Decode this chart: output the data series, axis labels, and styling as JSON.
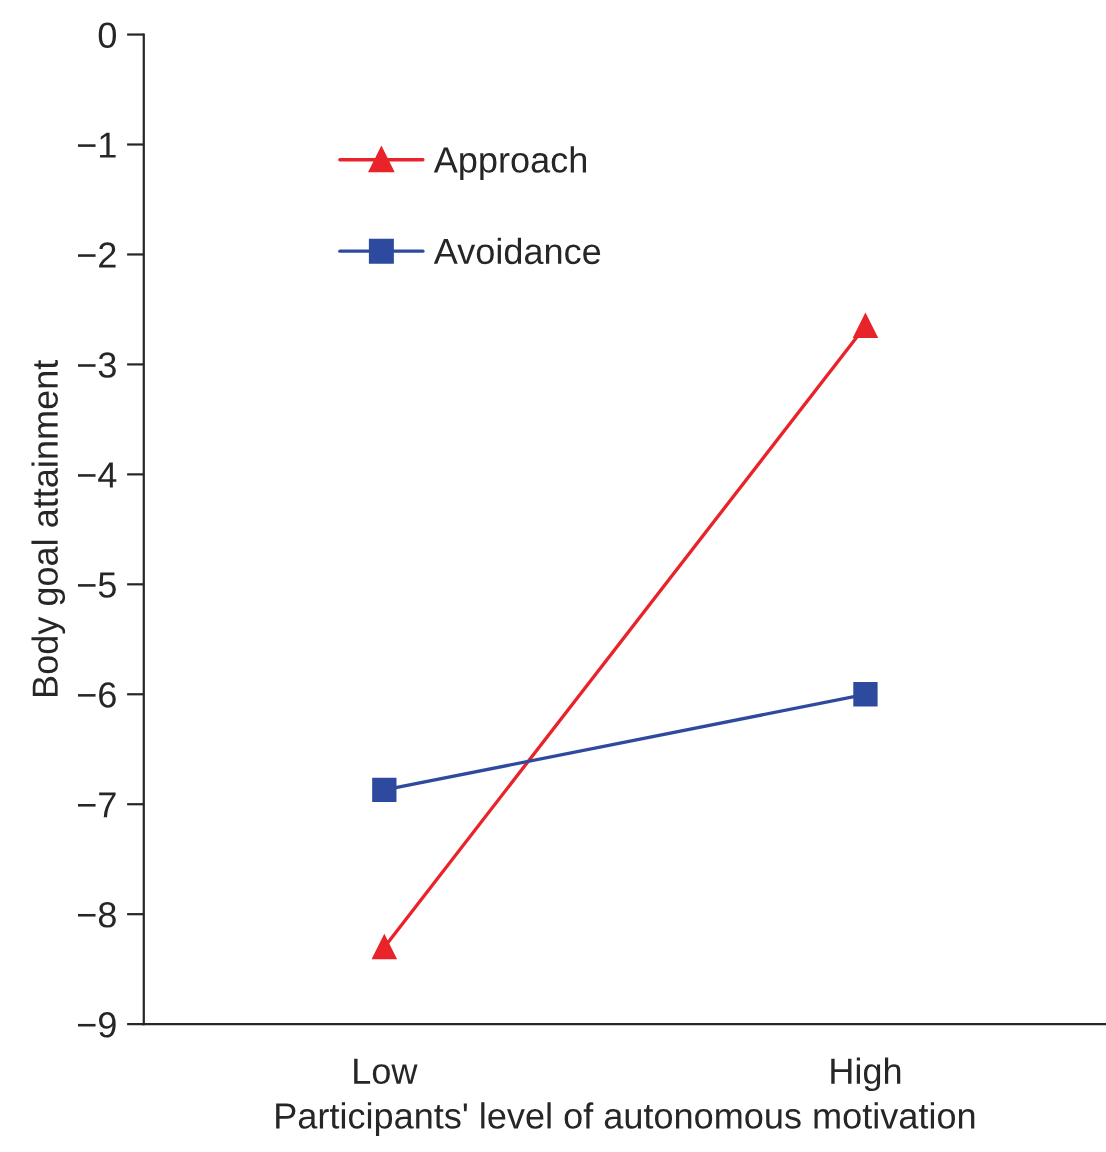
{
  "chart_data": {
    "type": "line",
    "xlabel": "Participants' level of autonomous motivation",
    "ylabel": "Body goal attainment",
    "categories": [
      "Low",
      "High"
    ],
    "series": [
      {
        "name": "Approach",
        "color": "#e8232a",
        "marker": "triangle",
        "values": [
          -8.3,
          -2.65
        ]
      },
      {
        "name": "Avoidance",
        "color": "#2e4a9e",
        "marker": "square",
        "values": [
          -6.87,
          -6.0
        ]
      }
    ],
    "ylim": [
      -9,
      0
    ],
    "yticks": [
      {
        "value": -9,
        "label": "−9"
      },
      {
        "value": -8,
        "label": "−8"
      },
      {
        "value": -7,
        "label": "−7"
      },
      {
        "value": -6,
        "label": "−6"
      },
      {
        "value": -5,
        "label": "−5"
      },
      {
        "value": -4,
        "label": "−4"
      },
      {
        "value": -3,
        "label": "−3"
      },
      {
        "value": -2,
        "label": "−2"
      },
      {
        "value": -1,
        "label": "−1"
      },
      0
    ],
    "grid": false,
    "legend": "top left",
    "line_style": "solid"
  }
}
